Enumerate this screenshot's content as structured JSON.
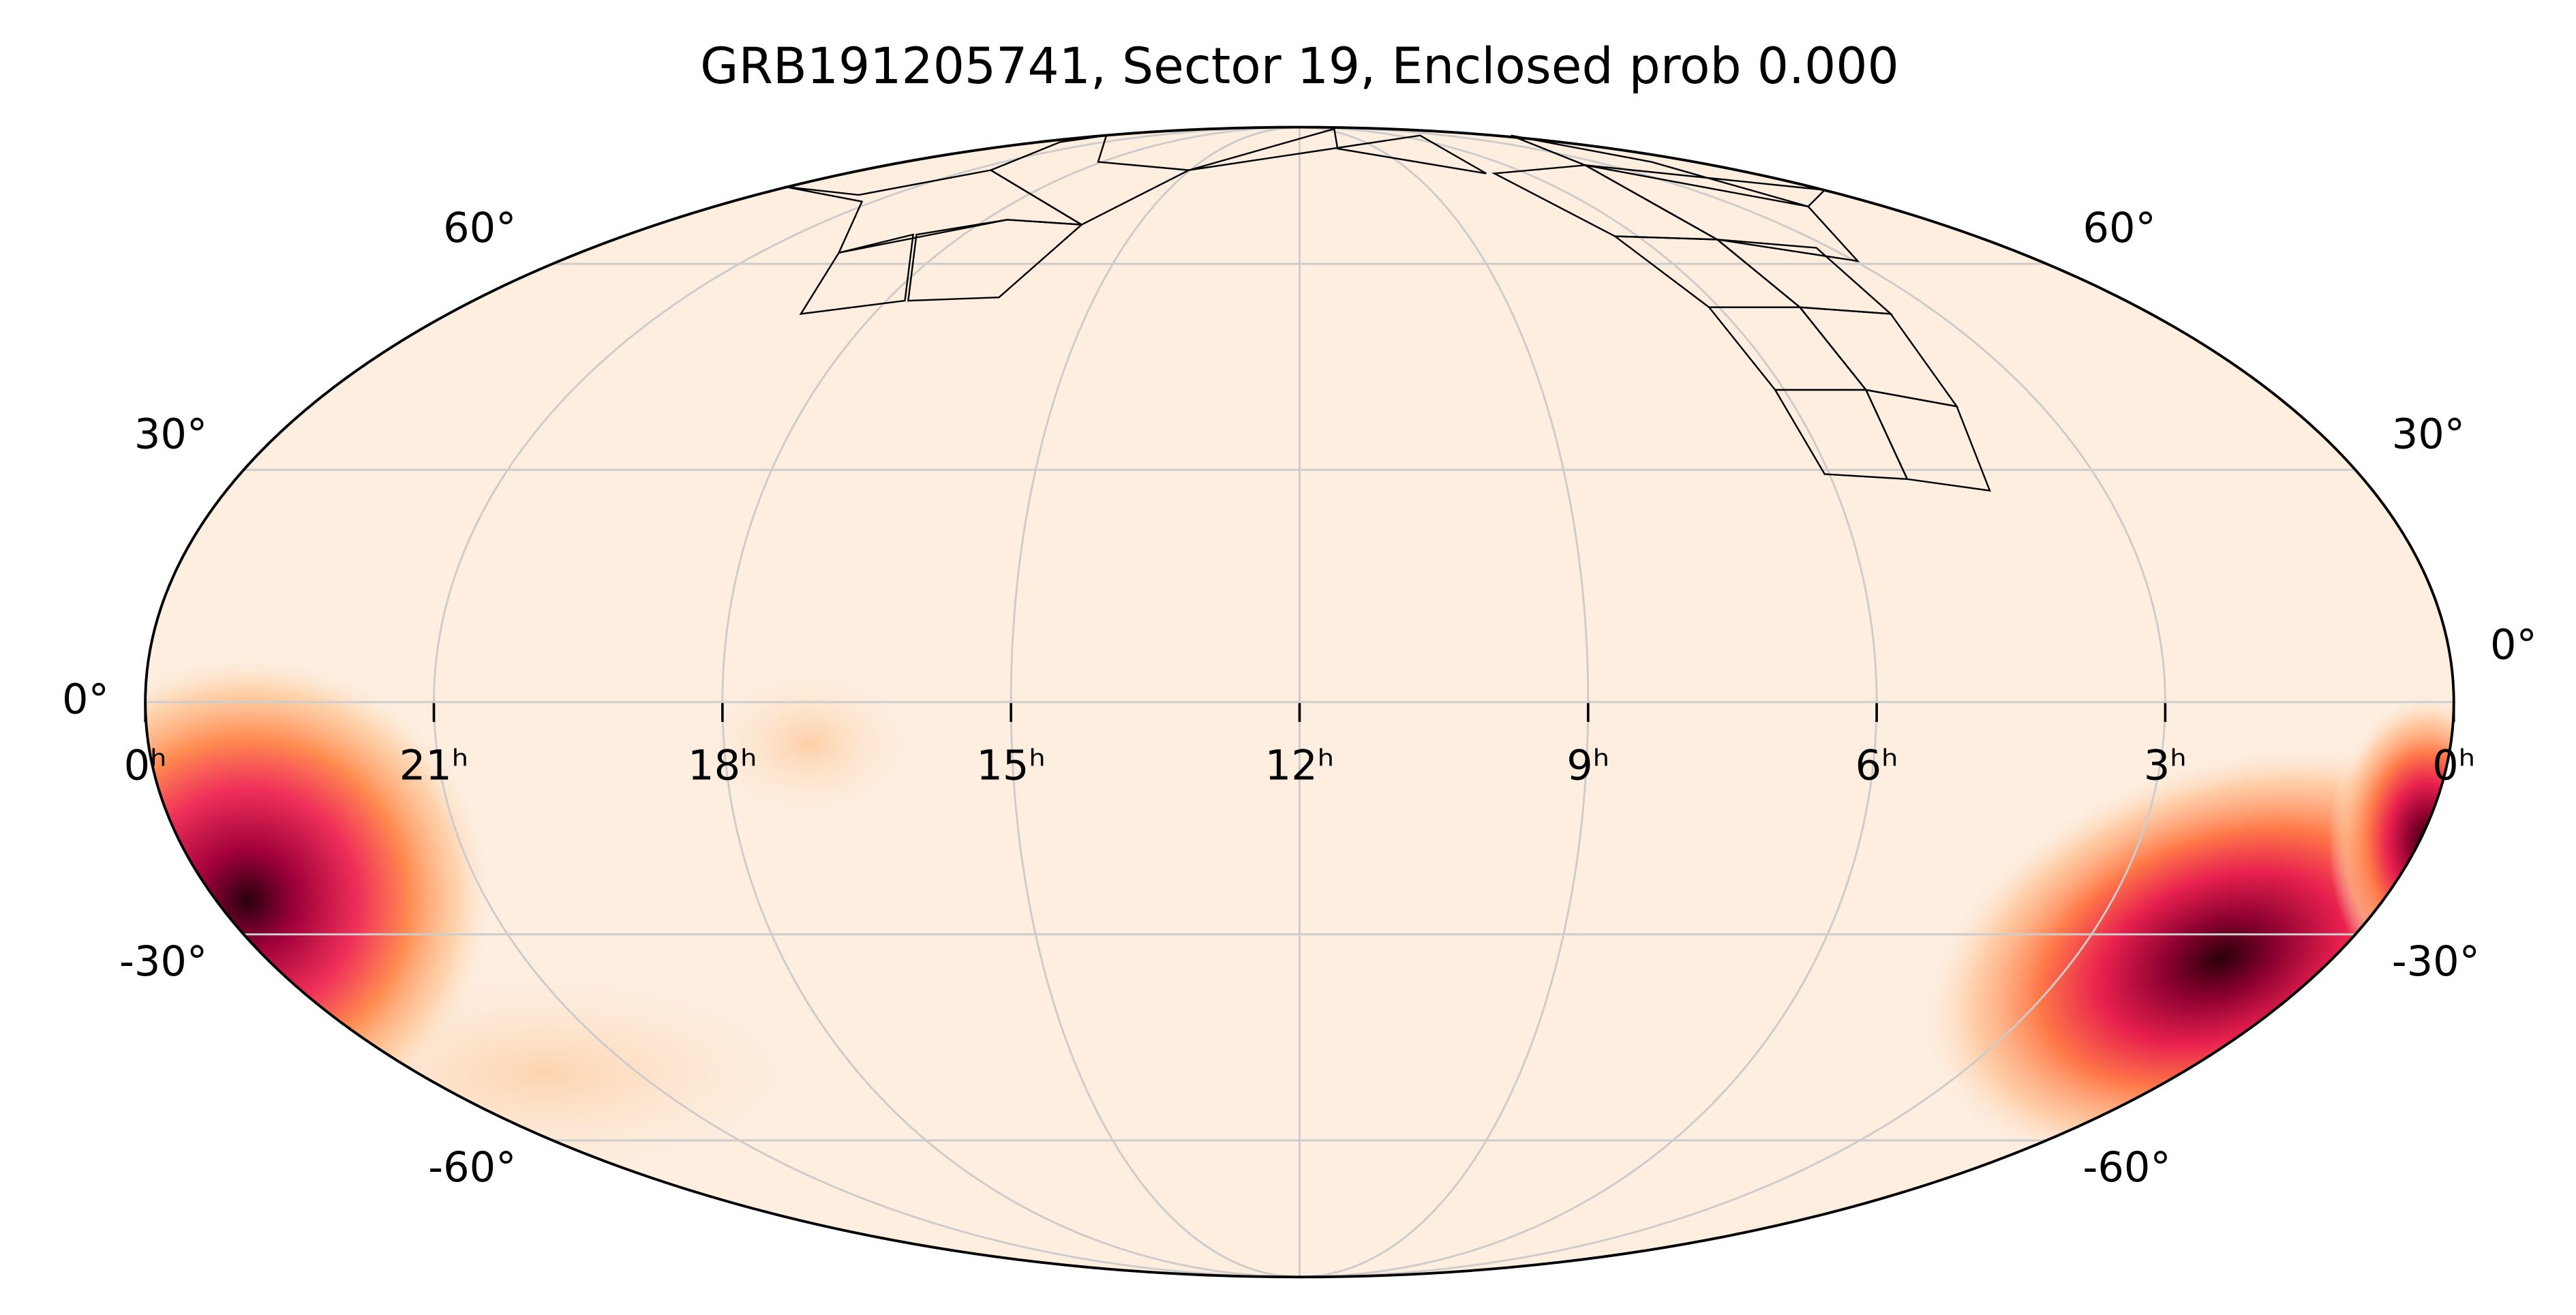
{
  "chart_data": {
    "type": "skymap",
    "title": "GRB191205741, Sector 19, Enclosed prob 0.000",
    "projection": "mollweide",
    "xlim": [
      24,
      0
    ],
    "xticks": [
      {
        "value": 24,
        "label": "0ʰ"
      },
      {
        "value": 21,
        "label": "21ʰ"
      },
      {
        "value": 18,
        "label": "18ʰ"
      },
      {
        "value": 15,
        "label": "15ʰ"
      },
      {
        "value": 12,
        "label": "12ʰ"
      },
      {
        "value": 9,
        "label": "9ʰ"
      },
      {
        "value": 6,
        "label": "6ʰ"
      },
      {
        "value": 3,
        "label": "3ʰ"
      },
      {
        "value": 0,
        "label": "0ʰ"
      }
    ],
    "ylim": [
      -90,
      90
    ],
    "yticks": [
      {
        "value": -60,
        "label": "-60°"
      },
      {
        "value": -30,
        "label": "-30°"
      },
      {
        "value": 0,
        "label": "0°"
      },
      {
        "value": 30,
        "label": "30°"
      },
      {
        "value": 60,
        "label": "60°"
      }
    ],
    "grid": true,
    "grid_color": "#cccccc",
    "background_color": "#fdeee0"
  }
}
